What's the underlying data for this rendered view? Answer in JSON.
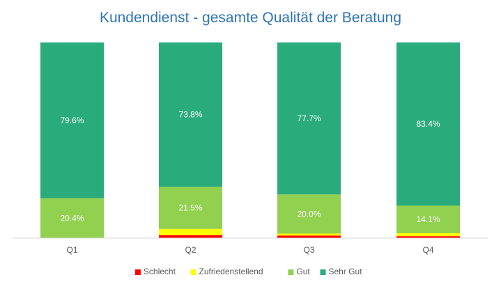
{
  "chart_data": {
    "type": "bar",
    "stacked": true,
    "percent_stacked": true,
    "title": "Kundendienst - gesamte Qualität der Beratung",
    "categories": [
      "Q1",
      "Q2",
      "Q3",
      "Q4"
    ],
    "series": [
      {
        "name": "Schlecht",
        "color": "#ff0000",
        "values": [
          0.0,
          1.5,
          1.3,
          1.0
        ],
        "labels": [
          "",
          "",
          "",
          ""
        ]
      },
      {
        "name": "Zufriedenstellend",
        "color": "#ffff00",
        "values": [
          0.0,
          3.2,
          1.0,
          1.5
        ],
        "labels": [
          "",
          "",
          "",
          ""
        ]
      },
      {
        "name": "Gut",
        "color": "#92d050",
        "values": [
          20.4,
          21.5,
          20.0,
          14.1
        ],
        "labels": [
          "20.4%",
          "21.5%",
          "20.0%",
          "14.1%"
        ]
      },
      {
        "name": "Sehr Gut",
        "color": "#2aab7b",
        "values": [
          79.6,
          73.8,
          77.7,
          83.4
        ],
        "labels": [
          "79.6%",
          "73.8%",
          "77.7%",
          "83.4%"
        ]
      }
    ],
    "ylim": [
      0,
      100
    ],
    "grid": false,
    "legend_position": "bottom"
  }
}
